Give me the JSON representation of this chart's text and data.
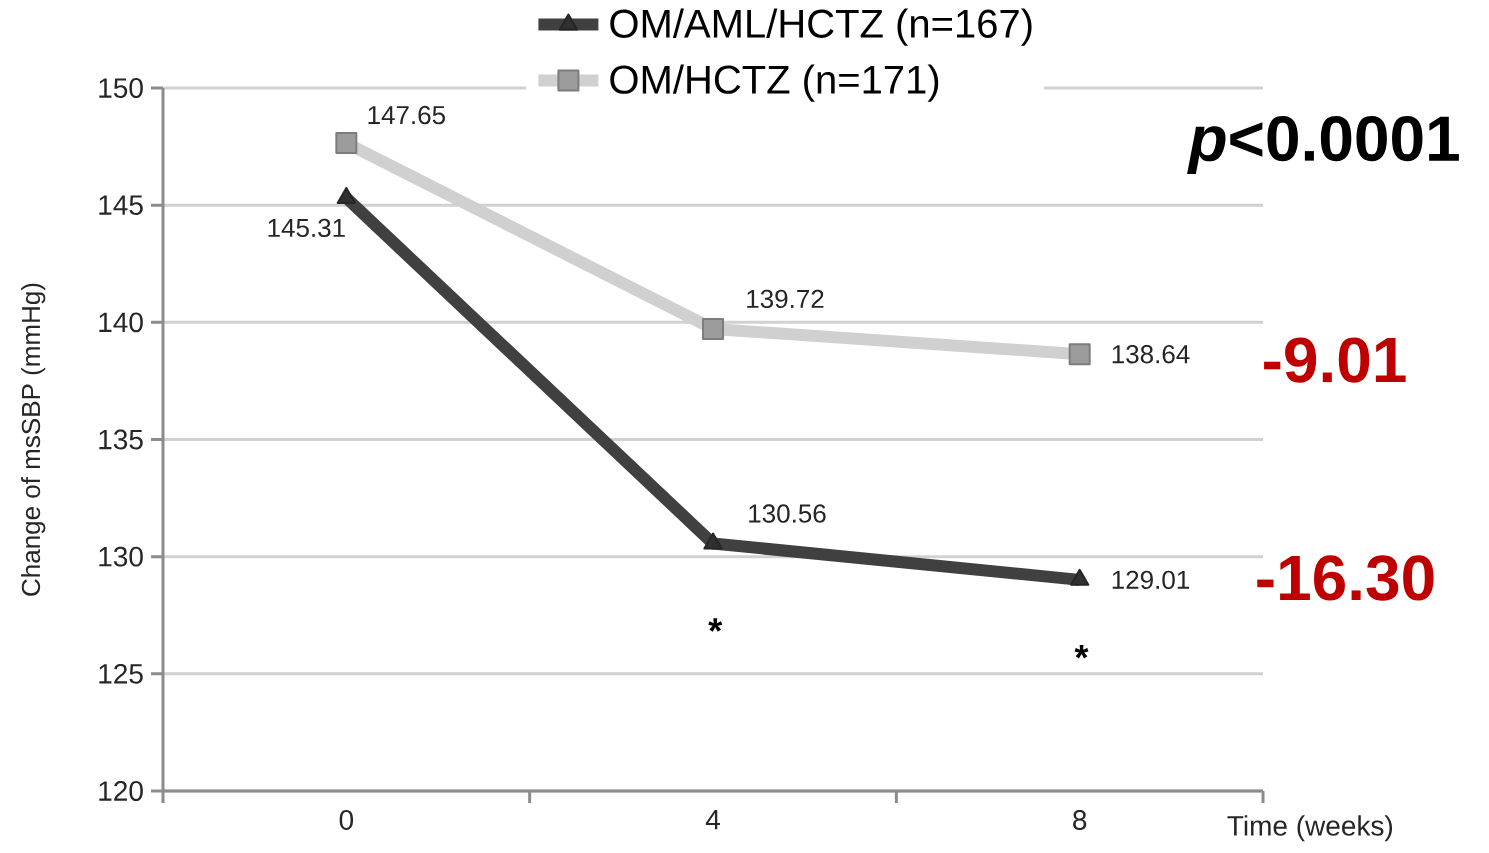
{
  "chart_data": {
    "type": "line",
    "xlabel": "Time (weeks)",
    "ylabel": "Change of msSBP (mmHg)",
    "categories": [
      "0",
      "4",
      "8"
    ],
    "ylim": [
      120,
      150
    ],
    "yticks": [
      120,
      125,
      130,
      135,
      140,
      145,
      150
    ],
    "grid": "y",
    "legend": "top",
    "data_labels": true,
    "series": [
      {
        "name": "OM/AML/HCTZ (n=167)",
        "color": "#404040",
        "marker": "triangle",
        "values": [
          145.31,
          130.56,
          129.01
        ]
      },
      {
        "name": "OM/HCTZ (n=171)",
        "color": "#d0d0d0",
        "marker": "square",
        "values": [
          147.65,
          139.72,
          138.64
        ]
      }
    ],
    "annotations": [
      "*p*<0.0001",
      "-9.01",
      "-16.30",
      "*",
      "*"
    ]
  }
}
